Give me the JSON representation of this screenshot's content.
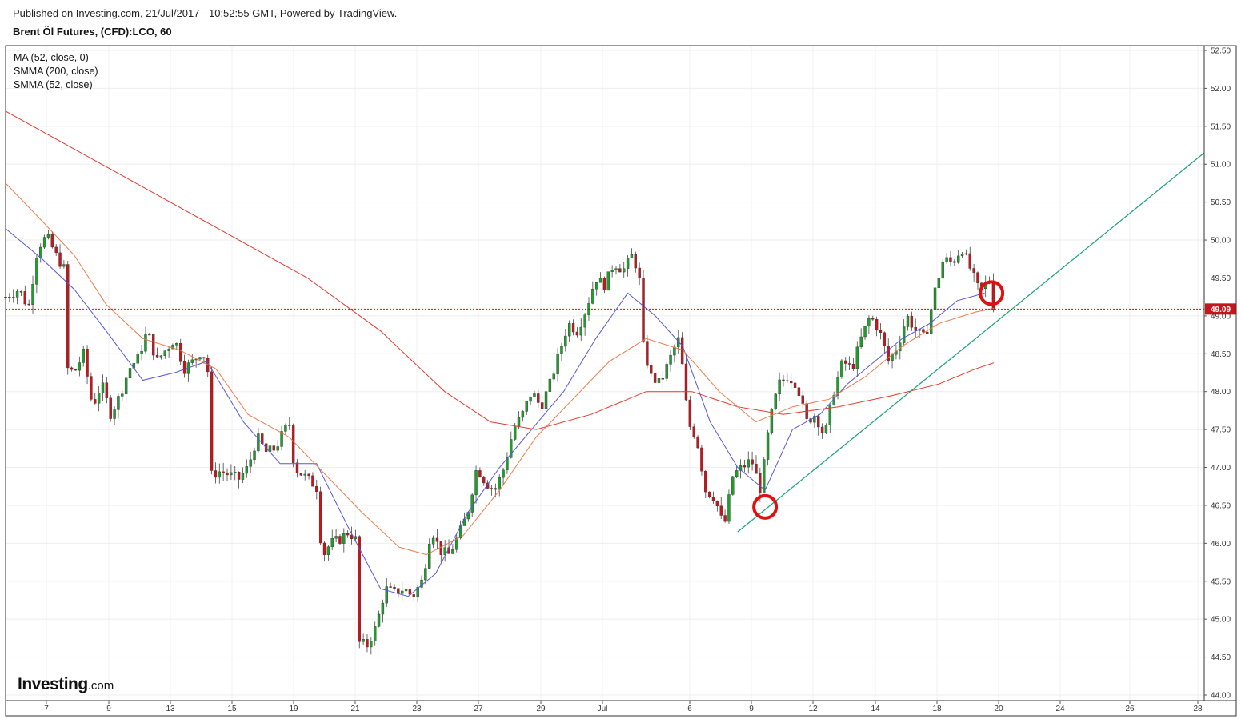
{
  "header": {
    "published": "Published on Investing.com, 21/Jul/2017 - 10:52:55 GMT, Powered by TradingView.",
    "title": "Brent Öl Futures, (CFD):LCO, 60"
  },
  "legend": {
    "items": [
      "MA (52, close, 0)",
      "SMMA (200, close)",
      "SMMA (52, close)"
    ]
  },
  "logo": {
    "main": "Investing",
    "suffix": ".com"
  },
  "colors": {
    "up": "#1e9e2a",
    "down": "#c4161c",
    "ma52": "#5555dd",
    "smma200": "#e03a2a",
    "smma52": "#f07a4a",
    "trendline": "#18a07a",
    "price_line": "#c4161c",
    "marker": "#e01010"
  },
  "chart_data": {
    "type": "line",
    "description_type": "candlestick",
    "y_ticks": [
      "52.50",
      "52.00",
      "51.50",
      "51.00",
      "50.50",
      "50.00",
      "49.50",
      "49.00",
      "48.50",
      "48.00",
      "47.50",
      "47.00",
      "46.50",
      "46.00",
      "45.50",
      "45.00",
      "44.50",
      "44.00"
    ],
    "ylim": [
      44.0,
      52.5
    ],
    "x_ticks": [
      "7",
      "9",
      "13",
      "15",
      "19",
      "21",
      "23",
      "27",
      "29",
      "Jul",
      "6",
      "9",
      "12",
      "14",
      "18",
      "20",
      "24",
      "26",
      "28"
    ],
    "last_price": "49.09",
    "close_path": [
      [
        0,
        49.25
      ],
      [
        3,
        49.35
      ],
      [
        5,
        49.1
      ],
      [
        7,
        49.9
      ],
      [
        9,
        50.05
      ],
      [
        11,
        49.8
      ],
      [
        13,
        49.6
      ],
      [
        13.6,
        48.3
      ],
      [
        15,
        48.25
      ],
      [
        17,
        48.5
      ],
      [
        19,
        47.8
      ],
      [
        21,
        48.1
      ],
      [
        23,
        47.7
      ],
      [
        25,
        47.95
      ],
      [
        27,
        48.3
      ],
      [
        29,
        48.45
      ],
      [
        31,
        48.8
      ],
      [
        33,
        48.4
      ],
      [
        35,
        48.55
      ],
      [
        37,
        48.7
      ],
      [
        39,
        48.3
      ],
      [
        41,
        48.4
      ],
      [
        43,
        48.55
      ],
      [
        44.5,
        48.2
      ],
      [
        45,
        46.9
      ],
      [
        47,
        46.95
      ],
      [
        49,
        46.9
      ],
      [
        51,
        46.85
      ],
      [
        53,
        47.0
      ],
      [
        55,
        47.4
      ],
      [
        57,
        47.2
      ],
      [
        59,
        47.25
      ],
      [
        61,
        47.5
      ],
      [
        62.5,
        47.6
      ],
      [
        63,
        47.0
      ],
      [
        65,
        46.9
      ],
      [
        67,
        46.8
      ],
      [
        68.5,
        46.7
      ],
      [
        69,
        45.8
      ],
      [
        71,
        46.0
      ],
      [
        73,
        46.05
      ],
      [
        75,
        46.15
      ],
      [
        76.5,
        46.05
      ],
      [
        77,
        44.7
      ],
      [
        79,
        44.65
      ],
      [
        81,
        44.9
      ],
      [
        83,
        45.4
      ],
      [
        85,
        45.35
      ],
      [
        87,
        45.4
      ],
      [
        89,
        45.3
      ],
      [
        91,
        45.5
      ],
      [
        92,
        45.8
      ],
      [
        93,
        46.2
      ],
      [
        95,
        45.9
      ],
      [
        97,
        45.85
      ],
      [
        99,
        46.1
      ],
      [
        101,
        46.4
      ],
      [
        103,
        47.0
      ],
      [
        105,
        46.8
      ],
      [
        107,
        46.7
      ],
      [
        109,
        47.0
      ],
      [
        111,
        47.5
      ],
      [
        113,
        47.7
      ],
      [
        115,
        48.0
      ],
      [
        117,
        47.8
      ],
      [
        119,
        48.1
      ],
      [
        121,
        48.5
      ],
      [
        123,
        48.9
      ],
      [
        125,
        48.8
      ],
      [
        127,
        49.1
      ],
      [
        129,
        49.5
      ],
      [
        131,
        49.4
      ],
      [
        133,
        49.7
      ],
      [
        135,
        49.6
      ],
      [
        137,
        49.8
      ],
      [
        138.5,
        49.55
      ],
      [
        139,
        48.7
      ],
      [
        141,
        48.2
      ],
      [
        143,
        48.1
      ],
      [
        145,
        48.4
      ],
      [
        147,
        48.7
      ],
      [
        148.5,
        48.1
      ],
      [
        149,
        47.6
      ],
      [
        151,
        47.4
      ],
      [
        153,
        46.7
      ],
      [
        155,
        46.6
      ],
      [
        157,
        46.2
      ],
      [
        159,
        46.9
      ],
      [
        161,
        47.0
      ],
      [
        163,
        47.1
      ],
      [
        165,
        46.7
      ],
      [
        167,
        47.6
      ],
      [
        169,
        48.1
      ],
      [
        171,
        48.2
      ],
      [
        173,
        48.1
      ],
      [
        175,
        47.6
      ],
      [
        177,
        47.7
      ],
      [
        179,
        47.4
      ],
      [
        181,
        48.0
      ],
      [
        183,
        48.4
      ],
      [
        185,
        48.3
      ],
      [
        187,
        48.7
      ],
      [
        189,
        49.0
      ],
      [
        191,
        48.8
      ],
      [
        193,
        48.4
      ],
      [
        195,
        48.6
      ],
      [
        197,
        49.0
      ],
      [
        199,
        48.8
      ],
      [
        201,
        48.7
      ],
      [
        203,
        49.3
      ],
      [
        205,
        49.75
      ],
      [
        207,
        49.7
      ],
      [
        209,
        49.9
      ],
      [
        211,
        49.6
      ],
      [
        213,
        49.3
      ],
      [
        215,
        49.5
      ],
      [
        216,
        49.09
      ]
    ],
    "series": [
      {
        "name": "MA (52, close, 0)",
        "points": [
          [
            0,
            50.15
          ],
          [
            8,
            49.75
          ],
          [
            15,
            49.35
          ],
          [
            22,
            48.8
          ],
          [
            30,
            48.15
          ],
          [
            37,
            48.25
          ],
          [
            44,
            48.4
          ],
          [
            52,
            47.6
          ],
          [
            60,
            47.05
          ],
          [
            68,
            47.05
          ],
          [
            75,
            46.2
          ],
          [
            82,
            45.4
          ],
          [
            88,
            45.3
          ],
          [
            94,
            45.6
          ],
          [
            101,
            46.4
          ],
          [
            108,
            47.0
          ],
          [
            115,
            47.5
          ],
          [
            122,
            48.0
          ],
          [
            129,
            48.7
          ],
          [
            136,
            49.3
          ],
          [
            142,
            49.0
          ],
          [
            148,
            48.6
          ],
          [
            154,
            47.6
          ],
          [
            160,
            47.0
          ],
          [
            166,
            46.7
          ],
          [
            172,
            47.5
          ],
          [
            178,
            47.7
          ],
          [
            184,
            48.1
          ],
          [
            190,
            48.4
          ],
          [
            196,
            48.7
          ],
          [
            202,
            48.9
          ],
          [
            208,
            49.2
          ],
          [
            214,
            49.3
          ]
        ]
      },
      {
        "name": "SMMA (200, close)",
        "points": [
          [
            0,
            51.7
          ],
          [
            12,
            51.3
          ],
          [
            30,
            50.7
          ],
          [
            48,
            50.1
          ],
          [
            66,
            49.5
          ],
          [
            82,
            48.8
          ],
          [
            96,
            48.0
          ],
          [
            106,
            47.6
          ],
          [
            116,
            47.5
          ],
          [
            128,
            47.7
          ],
          [
            140,
            48.0
          ],
          [
            150,
            48.0
          ],
          [
            160,
            47.8
          ],
          [
            170,
            47.7
          ],
          [
            182,
            47.8
          ],
          [
            194,
            47.95
          ],
          [
            204,
            48.1
          ],
          [
            212,
            48.3
          ],
          [
            216,
            48.38
          ]
        ]
      },
      {
        "name": "SMMA (52, close)",
        "points": [
          [
            0,
            50.75
          ],
          [
            8,
            50.25
          ],
          [
            15,
            49.8
          ],
          [
            22,
            49.15
          ],
          [
            30,
            48.7
          ],
          [
            38,
            48.55
          ],
          [
            46,
            48.3
          ],
          [
            53,
            47.7
          ],
          [
            62,
            47.4
          ],
          [
            70,
            46.9
          ],
          [
            78,
            46.4
          ],
          [
            86,
            45.95
          ],
          [
            92,
            45.85
          ],
          [
            100,
            46.1
          ],
          [
            108,
            46.7
          ],
          [
            116,
            47.4
          ],
          [
            124,
            47.9
          ],
          [
            132,
            48.4
          ],
          [
            140,
            48.7
          ],
          [
            148,
            48.55
          ],
          [
            156,
            48.0
          ],
          [
            164,
            47.6
          ],
          [
            172,
            47.8
          ],
          [
            180,
            47.9
          ],
          [
            188,
            48.2
          ],
          [
            196,
            48.6
          ],
          [
            204,
            48.9
          ],
          [
            212,
            49.05
          ],
          [
            216,
            49.1
          ]
        ]
      }
    ],
    "trendline": {
      "from": [
        160,
        46.15
      ],
      "to": [
        262,
        51.15
      ]
    },
    "markers": [
      {
        "x": 166,
        "y": 46.48
      },
      {
        "x": 215.5,
        "y": 49.3
      }
    ]
  }
}
